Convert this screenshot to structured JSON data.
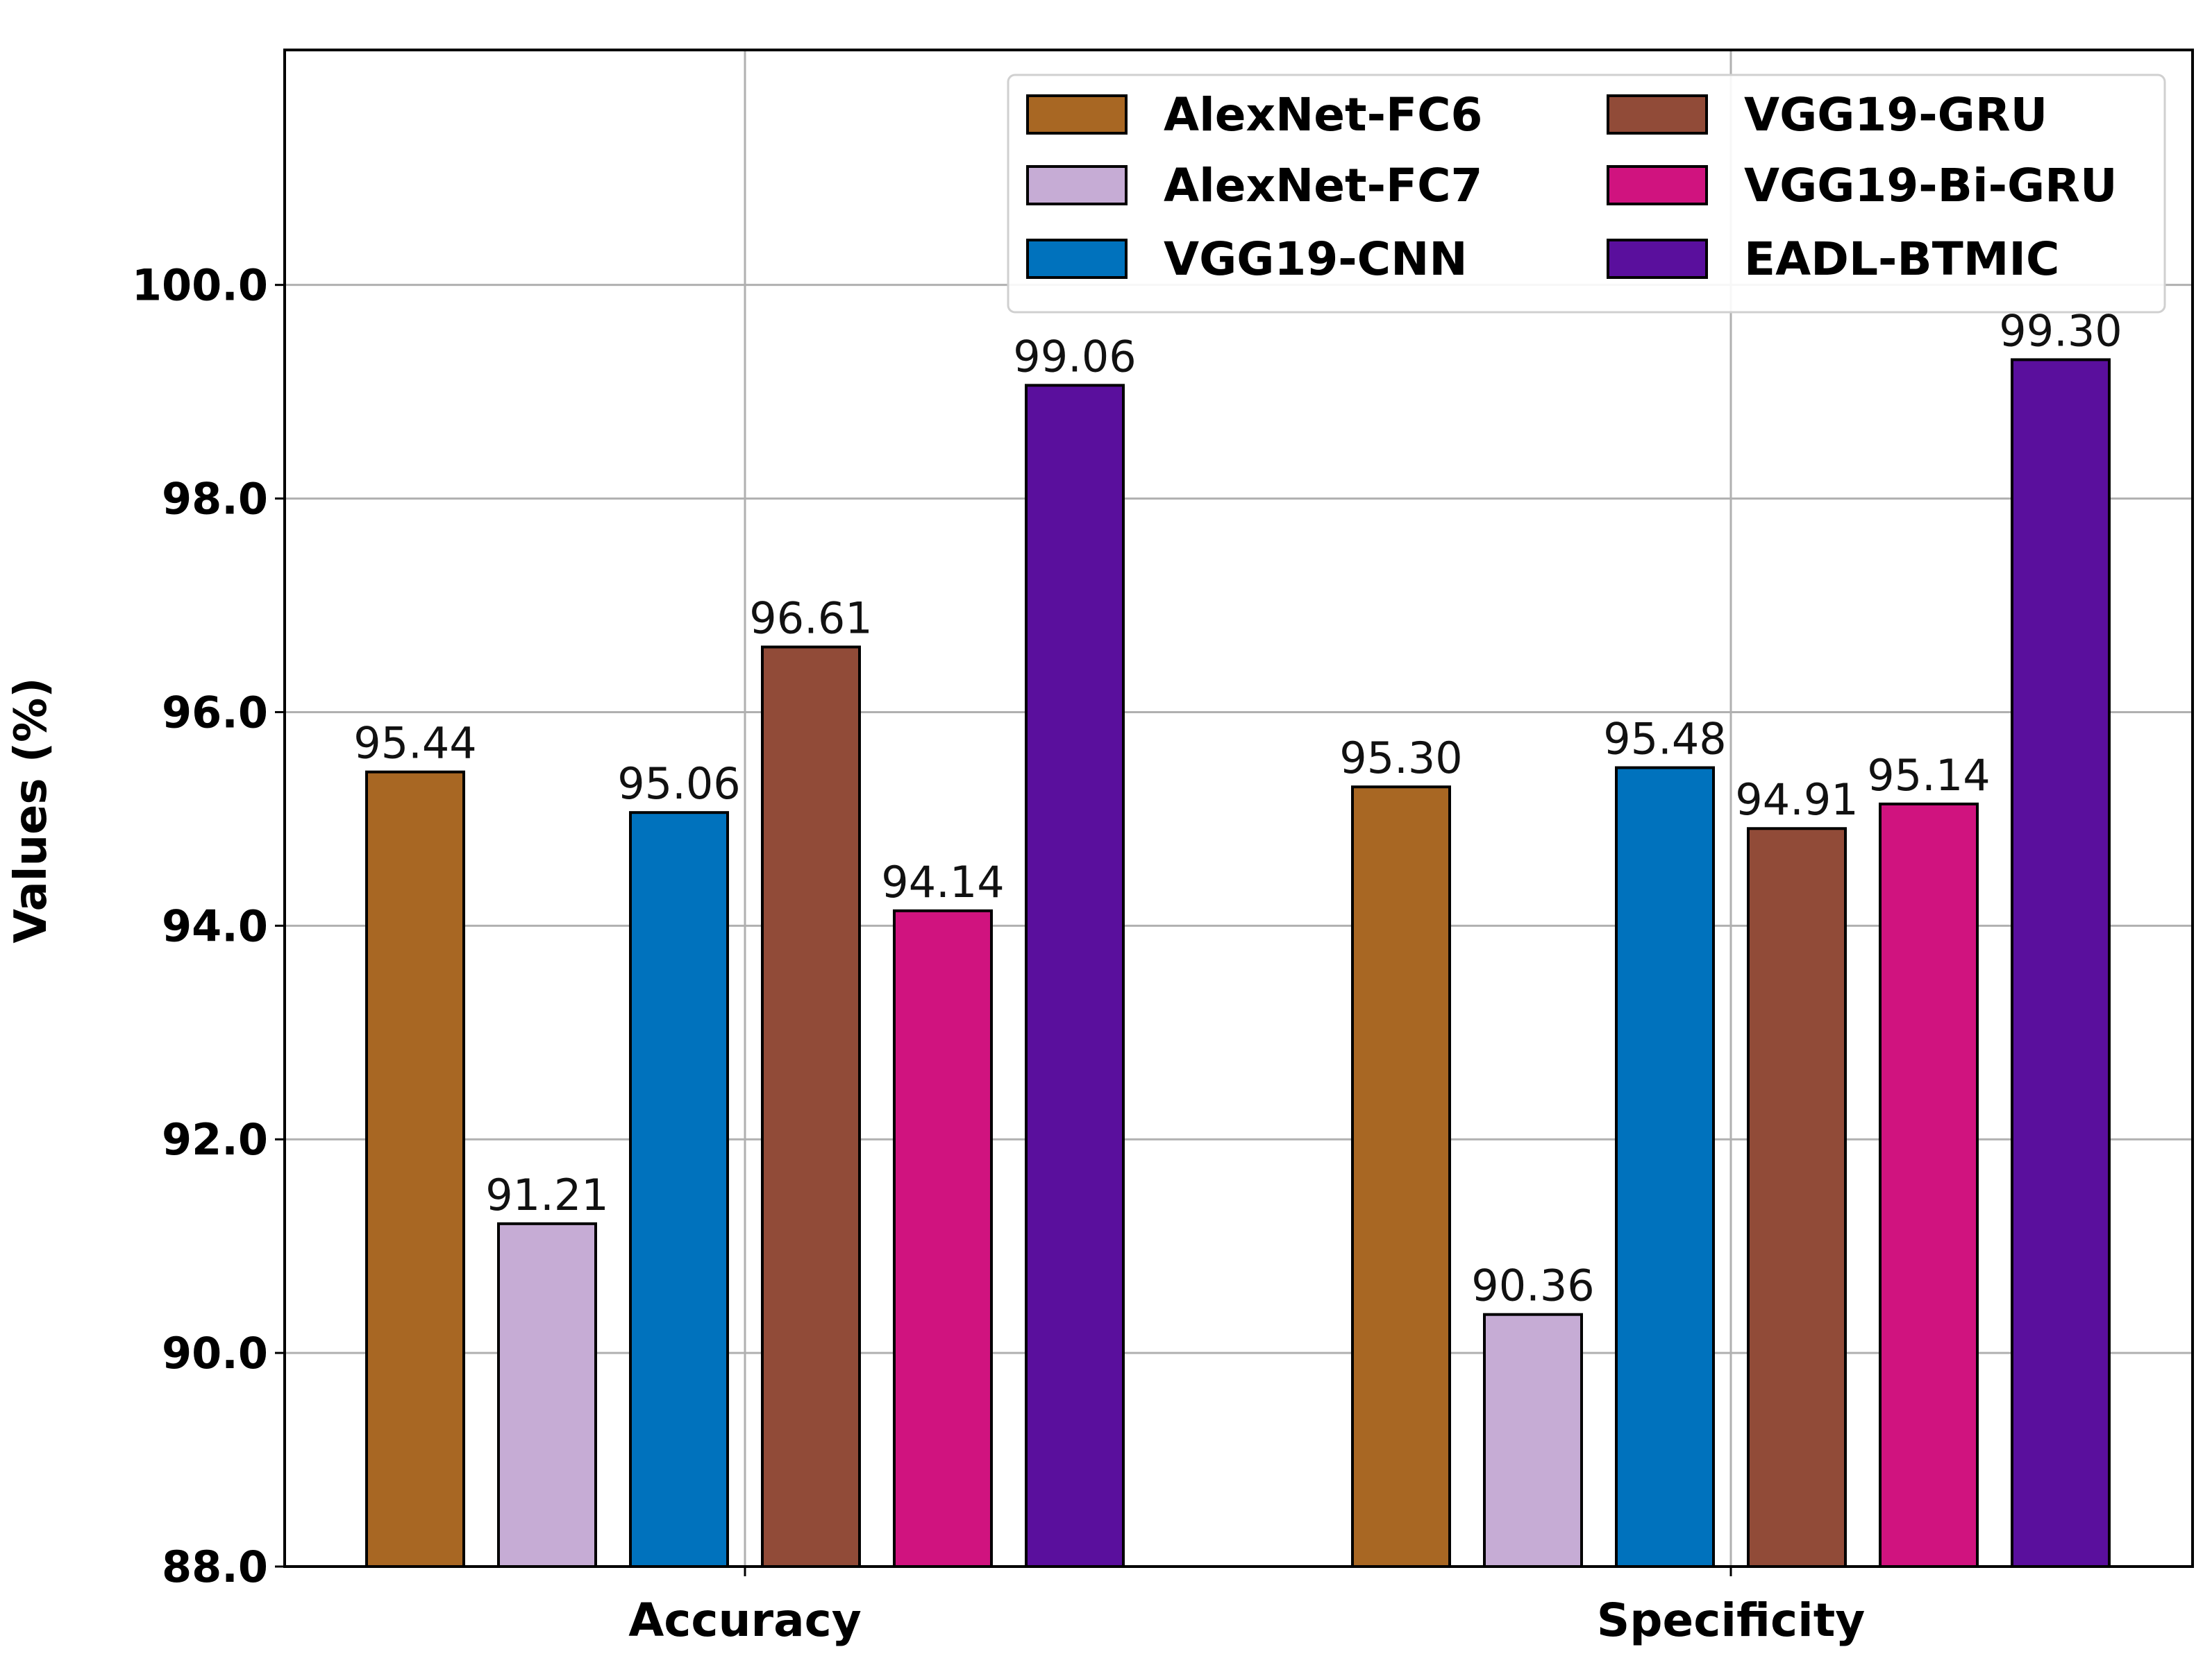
{
  "chart_data": {
    "type": "bar",
    "categories": [
      "Accuracy",
      "Specificity"
    ],
    "series": [
      {
        "name": "AlexNet-FC6",
        "color": "#a86723",
        "values": [
          95.44,
          95.3
        ],
        "labels": [
          "95.44",
          "95.30"
        ]
      },
      {
        "name": "AlexNet-FC7",
        "color": "#c6acd5",
        "values": [
          91.21,
          90.36
        ],
        "labels": [
          "91.21",
          "90.36"
        ]
      },
      {
        "name": "VGG19-CNN",
        "color": "#0072bd",
        "values": [
          95.06,
          95.48
        ],
        "labels": [
          "95.06",
          "95.48"
        ]
      },
      {
        "name": "VGG19-GRU",
        "color": "#914b38",
        "values": [
          96.61,
          94.91
        ],
        "labels": [
          "96.61",
          "94.91"
        ]
      },
      {
        "name": "VGG19-Bi-GRU",
        "color": "#d0137f",
        "values": [
          94.14,
          95.14
        ],
        "labels": [
          "94.14",
          "95.14"
        ]
      },
      {
        "name": "EADL-BTMIC",
        "color": "#5a0f9d",
        "values": [
          99.06,
          99.3
        ],
        "labels": [
          "99.06",
          "99.30"
        ]
      }
    ],
    "ylabel": "Values (%)",
    "xlabel": "",
    "ylim": [
      88.0,
      102.2
    ],
    "yticks": [
      88.0,
      90.0,
      92.0,
      94.0,
      96.0,
      98.0,
      100.0
    ],
    "ytick_labels": [
      "88.0",
      "90.0",
      "92.0",
      "94.0",
      "96.0",
      "98.0",
      "100.0"
    ],
    "grid": true,
    "legend_position": "top-right",
    "legend_columns": 2
  }
}
